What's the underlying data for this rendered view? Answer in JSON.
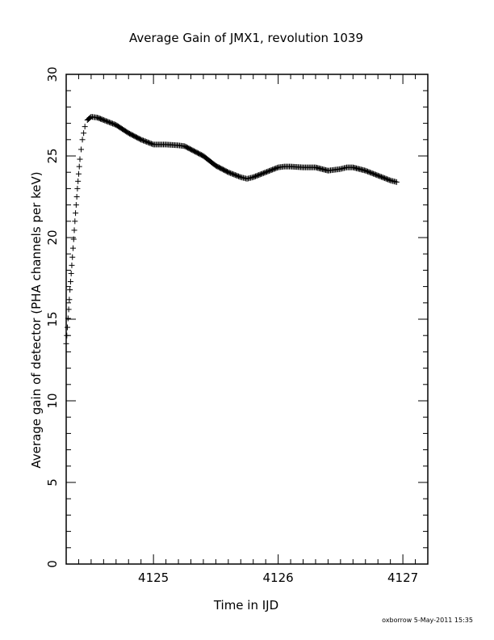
{
  "chart_data": {
    "type": "scatter",
    "title": "Average Gain of JMX1, revolution 1039",
    "xlabel": "Time in IJD",
    "ylabel": "Average gain of detector (PHA channels per keV)",
    "xlim": [
      4124.3,
      4127.2
    ],
    "ylim": [
      0,
      30
    ],
    "x_ticks": [
      "4125",
      "4126",
      "4127"
    ],
    "y_ticks": [
      "0",
      "5",
      "10",
      "15",
      "20",
      "25",
      "30"
    ],
    "marker": "+",
    "marker_color": "#000000",
    "grid": false,
    "legend": "none",
    "footer": "oxborrow  5-May-2011 15:35",
    "series": [
      {
        "x": [
          4124.3,
          4124.31,
          4124.32,
          4124.33,
          4124.35,
          4124.37,
          4124.39,
          4124.41,
          4124.43,
          4124.45,
          4124.47,
          4124.5,
          4124.55,
          4124.6,
          4124.7,
          4124.8,
          4124.9,
          4125.0,
          4125.1,
          4125.2,
          4125.25,
          4125.3,
          4125.4,
          4125.5,
          4125.6,
          4125.7,
          4125.75,
          4125.8,
          4125.9,
          4126.0,
          4126.05,
          4126.1,
          4126.2,
          4126.3,
          4126.4,
          4126.5,
          4126.55,
          4126.6,
          4126.7,
          4126.8,
          4126.9,
          4126.95
        ],
        "y": [
          13.5,
          14.5,
          15.6,
          16.8,
          18.8,
          21.0,
          23.0,
          24.8,
          26.0,
          26.8,
          27.2,
          27.4,
          27.35,
          27.2,
          26.9,
          26.4,
          26.0,
          25.7,
          25.7,
          25.65,
          25.6,
          25.4,
          25.0,
          24.4,
          24.0,
          23.7,
          23.6,
          23.7,
          24.0,
          24.3,
          24.35,
          24.35,
          24.3,
          24.3,
          24.1,
          24.2,
          24.3,
          24.3,
          24.1,
          23.8,
          23.5,
          23.4
        ]
      }
    ]
  }
}
